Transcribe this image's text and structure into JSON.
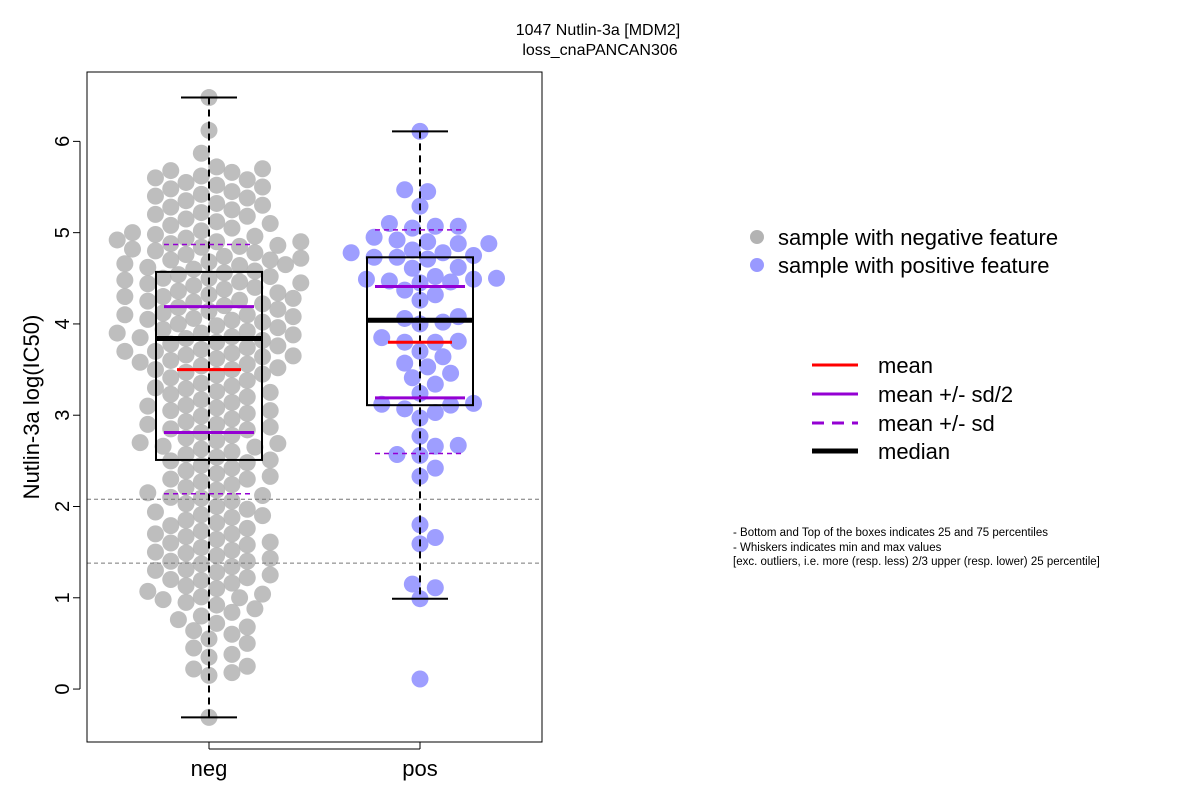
{
  "chart_data": {
    "type": "boxplot-beeswarm",
    "title": "1047 Nutlin-3a [MDM2]",
    "subtitle": "loss_cnaPANCAN306",
    "ylabel": "Nutlin-3a log(IC50)",
    "xlabel": "",
    "ylim": [
      -0.58,
      6.76
    ],
    "yticks": [
      "0",
      "1",
      "2",
      "3",
      "4",
      "5",
      "6"
    ],
    "categories": [
      "neg",
      "pos"
    ],
    "reference_lines": [
      2.08,
      1.38
    ],
    "colors": {
      "neg": "#b3b3b3",
      "pos": "#9999ff",
      "mean": "#ff0000",
      "sd": "#9400d3",
      "median": "#000000"
    },
    "groups": [
      {
        "name": "neg",
        "whisker_low": -0.31,
        "q1": 2.51,
        "median": 3.84,
        "q3": 4.57,
        "whisker_high": 6.48,
        "mean": 3.5,
        "mean_minus_half_sd": 2.81,
        "mean_plus_half_sd": 4.19,
        "mean_minus_sd": 2.14,
        "mean_plus_sd": 4.87,
        "values": [
          6.48,
          6.12,
          5.87,
          5.72,
          5.7,
          5.68,
          5.66,
          5.62,
          5.6,
          5.58,
          5.55,
          5.52,
          5.5,
          5.48,
          5.45,
          5.42,
          5.4,
          5.38,
          5.35,
          5.32,
          5.3,
          5.28,
          5.25,
          5.22,
          5.2,
          5.18,
          5.15,
          5.12,
          5.1,
          5.08,
          5.05,
          5.02,
          5.0,
          4.98,
          4.96,
          4.94,
          4.92,
          4.9,
          4.88,
          4.86,
          4.84,
          4.82,
          4.8,
          4.78,
          4.76,
          4.74,
          4.72,
          4.7,
          4.68,
          4.66,
          4.64,
          4.62,
          4.6,
          4.58,
          4.56,
          4.54,
          4.52,
          4.5,
          4.48,
          4.46,
          4.44,
          4.42,
          4.4,
          4.38,
          4.36,
          4.34,
          4.32,
          4.3,
          4.28,
          4.26,
          4.24,
          4.22,
          4.2,
          4.18,
          4.16,
          4.14,
          4.12,
          4.1,
          4.08,
          4.06,
          4.04,
          4.02,
          4.0,
          3.98,
          3.96,
          3.94,
          3.92,
          3.9,
          3.88,
          3.86,
          3.84,
          3.82,
          3.8,
          3.78,
          3.76,
          3.74,
          3.72,
          3.7,
          3.68,
          3.66,
          3.64,
          3.62,
          3.6,
          3.58,
          3.56,
          3.54,
          3.52,
          3.5,
          3.47,
          3.44,
          3.41,
          3.38,
          3.35,
          3.32,
          3.29,
          3.26,
          3.23,
          3.2,
          3.17,
          3.14,
          3.11,
          3.08,
          3.05,
          3.02,
          2.99,
          2.96,
          2.93,
          2.9,
          2.87,
          2.84,
          2.81,
          2.78,
          2.75,
          2.72,
          2.69,
          2.66,
          2.63,
          2.6,
          2.57,
          2.54,
          2.51,
          2.48,
          2.45,
          2.42,
          2.39,
          2.36,
          2.33,
          2.3,
          2.27,
          2.24,
          2.21,
          2.18,
          2.15,
          2.12,
          2.09,
          2.06,
          2.03,
          2.0,
          1.97,
          1.94,
          1.91,
          1.88,
          1.85,
          1.82,
          1.79,
          1.76,
          1.73,
          1.7,
          1.67,
          1.64,
          1.61,
          1.58,
          1.55,
          1.52,
          1.49,
          1.46,
          1.43,
          1.4,
          1.37,
          1.34,
          1.31,
          1.28,
          1.25,
          1.22,
          1.19,
          1.16,
          1.13,
          1.1,
          1.07,
          1.04,
          1.01,
          0.98,
          0.95,
          0.92,
          0.88,
          0.84,
          0.8,
          0.76,
          0.72,
          0.68,
          0.64,
          0.6,
          0.55,
          0.5,
          0.45,
          0.38,
          0.35,
          0.25,
          0.22,
          0.18,
          0.15,
          -0.31,
          4.9,
          4.7,
          4.5,
          4.3,
          4.1,
          3.9,
          3.7,
          3.5,
          3.3,
          3.1,
          2.9,
          2.7,
          2.5,
          2.3,
          2.1,
          1.9,
          1.7,
          1.5,
          1.3,
          4.85,
          4.65,
          4.45,
          4.25,
          4.05,
          3.85,
          3.65,
          3.45,
          3.25,
          3.05,
          2.85,
          2.65,
          1.6,
          1.4,
          1.2,
          1.0
        ]
      },
      {
        "name": "pos",
        "whisker_low": 0.99,
        "q1": 3.11,
        "median": 4.04,
        "q3": 4.73,
        "whisker_high": 6.11,
        "mean": 3.8,
        "mean_minus_half_sd": 3.19,
        "mean_plus_half_sd": 4.41,
        "mean_minus_sd": 2.58,
        "mean_plus_sd": 5.03,
        "values": [
          6.11,
          5.47,
          5.45,
          5.29,
          5.1,
          5.07,
          5.07,
          5.05,
          4.95,
          4.92,
          4.9,
          4.88,
          4.88,
          4.81,
          4.78,
          4.78,
          4.75,
          4.73,
          4.73,
          4.71,
          4.62,
          4.61,
          4.52,
          4.5,
          4.49,
          4.49,
          4.47,
          4.46,
          4.45,
          4.37,
          4.32,
          4.26,
          4.08,
          4.06,
          4.02,
          4.0,
          3.85,
          3.81,
          3.8,
          3.8,
          3.7,
          3.64,
          3.57,
          3.53,
          3.46,
          3.41,
          3.34,
          3.24,
          3.13,
          3.12,
          3.11,
          3.07,
          3.03,
          2.97,
          2.77,
          2.67,
          2.66,
          2.57,
          2.56,
          2.42,
          2.33,
          1.8,
          1.66,
          1.59,
          1.15,
          1.11,
          0.99,
          0.11
        ]
      }
    ],
    "legend_points": [
      {
        "label": "sample with negative feature",
        "color": "#b3b3b3"
      },
      {
        "label": "sample with positive feature",
        "color": "#9999ff"
      }
    ],
    "legend_lines": [
      {
        "label": "mean",
        "color": "#ff0000",
        "style": "solid"
      },
      {
        "label": "mean +/- sd/2",
        "color": "#9400d3",
        "style": "solid"
      },
      {
        "label": "mean +/- sd",
        "color": "#9400d3",
        "style": "dashed"
      },
      {
        "label": "median",
        "color": "#000000",
        "style": "thick"
      }
    ],
    "notes": [
      "- Bottom and Top of the boxes indicates 25 and 75 percentiles",
      "- Whiskers indicates min and max values",
      "[exc. outliers, i.e. more (resp. less) 2/3 upper (resp. lower) 25 percentile]"
    ]
  }
}
